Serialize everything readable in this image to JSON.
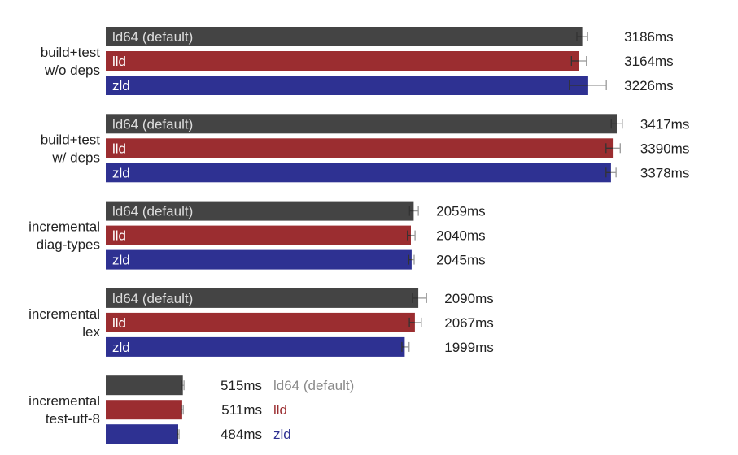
{
  "colors": {
    "ld64": "#444444",
    "lld": "#9b2d30",
    "zld": "#2e3192",
    "ld64_outside_text": "#8a8a8a",
    "error_dark": "#333333",
    "error_light": "#999999"
  },
  "chart_data": {
    "type": "bar",
    "orientation": "horizontal",
    "unit": "ms",
    "xlim": [
      0,
      4000
    ],
    "grid": false,
    "legend": "none",
    "series_names": [
      "ld64 (default)",
      "lld",
      "zld"
    ],
    "groups": [
      {
        "label_lines": [
          "build+test",
          "w/o deps"
        ],
        "bars": [
          {
            "name": "ld64 (default)",
            "value": 3186,
            "value_label": "3186ms",
            "err": [
              3150,
              3222
            ]
          },
          {
            "name": "lld",
            "value": 3164,
            "value_label": "3164ms",
            "err": [
              3114,
              3214
            ]
          },
          {
            "name": "zld",
            "value": 3226,
            "value_label": "3226ms",
            "err": [
              3100,
              3347
            ]
          }
        ]
      },
      {
        "label_lines": [
          "build+test",
          "w/ deps"
        ],
        "bars": [
          {
            "name": "ld64 (default)",
            "value": 3417,
            "value_label": "3417ms",
            "err": [
              3380,
              3454
            ]
          },
          {
            "name": "lld",
            "value": 3390,
            "value_label": "3390ms",
            "err": [
              3345,
              3440
            ]
          },
          {
            "name": "zld",
            "value": 3378,
            "value_label": "3378ms",
            "err": [
              3345,
              3412
            ]
          }
        ]
      },
      {
        "label_lines": [
          "incremental",
          "diag-types"
        ],
        "bars": [
          {
            "name": "ld64 (default)",
            "value": 2059,
            "value_label": "2059ms",
            "err": [
              2031,
              2090
            ]
          },
          {
            "name": "lld",
            "value": 2040,
            "value_label": "2040ms",
            "err": [
              2017,
              2068
            ]
          },
          {
            "name": "zld",
            "value": 2045,
            "value_label": "2045ms",
            "err": [
              2026,
              2062
            ]
          }
        ]
      },
      {
        "label_lines": [
          "incremental",
          "lex"
        ],
        "bars": [
          {
            "name": "ld64 (default)",
            "value": 2090,
            "value_label": "2090ms",
            "err": [
              2050,
              2145
            ]
          },
          {
            "name": "lld",
            "value": 2067,
            "value_label": "2067ms",
            "err": [
              2030,
              2110
            ]
          },
          {
            "name": "zld",
            "value": 1999,
            "value_label": "1999ms",
            "err": [
              1980,
              2028
            ]
          }
        ]
      },
      {
        "label_lines": [
          "incremental",
          "test-utf-8"
        ],
        "bars": [
          {
            "name": "ld64 (default)",
            "value": 515,
            "value_label": "515ms",
            "err": [
              508,
              523
            ]
          },
          {
            "name": "lld",
            "value": 511,
            "value_label": "511ms",
            "err": [
              505,
              518
            ]
          },
          {
            "name": "zld",
            "value": 484,
            "value_label": "484ms",
            "err": [
              479,
              490
            ]
          }
        ]
      }
    ]
  }
}
